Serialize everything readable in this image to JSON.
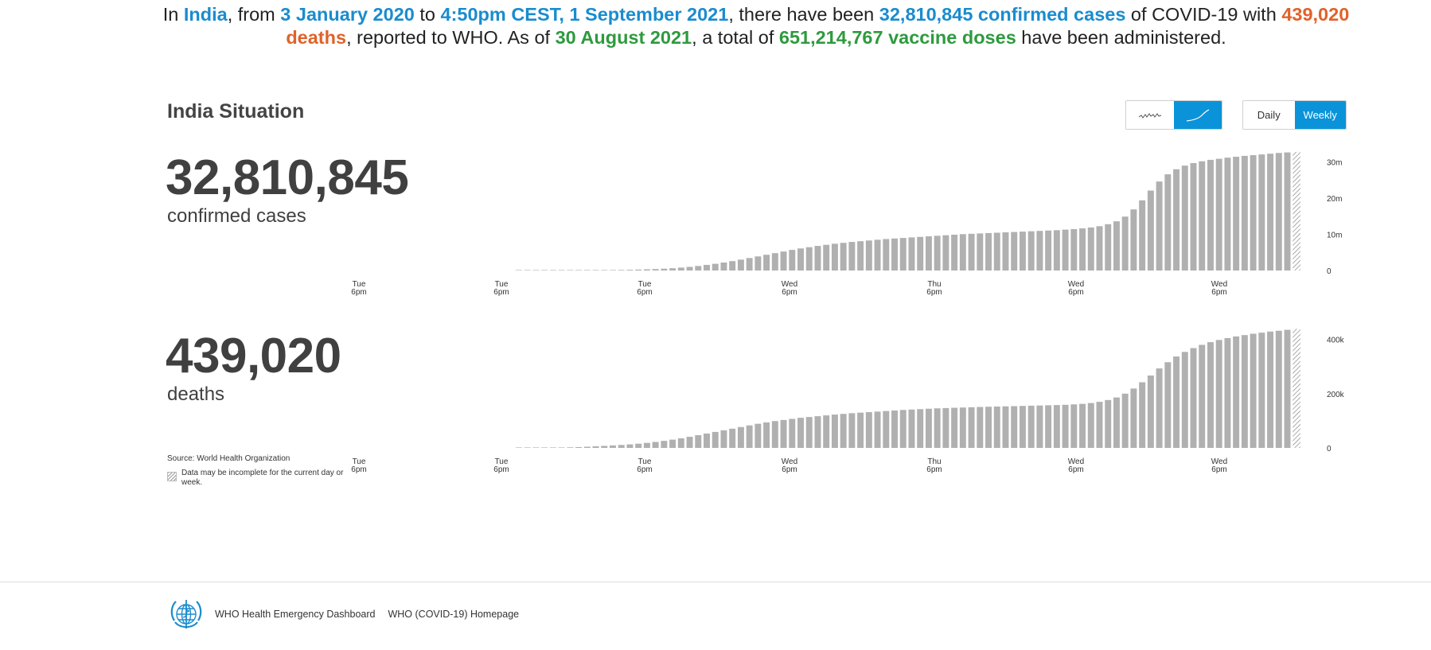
{
  "headline": {
    "p1": "In ",
    "country": "India",
    "p2": ", from ",
    "date_start": "3 January 2020",
    "p3": " to ",
    "date_end": "4:50pm CEST, 1 September 2021",
    "p4": ", there have been ",
    "cases_text": "32,810,845 confirmed cases",
    "p5": " of COVID-19 with ",
    "deaths_text": "439,020 deaths",
    "p6": ", reported to WHO. As of ",
    "vaccine_date": "30 August 2021",
    "p7": ", a total of ",
    "vaccine_text": "651,214,767 vaccine doses",
    "p8": " have been administered."
  },
  "section_title": "India Situation",
  "controls": {
    "mode_icons": [
      "daily-trend-icon",
      "cumulative-trend-icon"
    ],
    "mode_active": "cumulative",
    "period_daily_label": "Daily",
    "period_weekly_label": "Weekly",
    "period_active": "Weekly"
  },
  "cases": {
    "number": "32,810,845",
    "label": "confirmed cases"
  },
  "deaths": {
    "number": "439,020",
    "label": "deaths"
  },
  "source": "Source:  World Health Organization",
  "note": "Data may be incomplete for the current day or week.",
  "footer": {
    "logo": "who-emblem-icon",
    "link1": "WHO Health Emergency Dashboard",
    "link2": "WHO (COVID-19) Homepage"
  },
  "colors": {
    "bar": "#b0b0b0",
    "accent_blue": "#1a8cce",
    "deaths_orange": "#e0622a",
    "vaccine_green": "#2e9a3e",
    "toggle_active": "#0a93d9"
  },
  "chart_data": [
    {
      "type": "bar",
      "name": "confirmed-cases-cumulative-weekly",
      "x_tick_labels": [
        {
          "day": "Tue",
          "time": "6pm"
        },
        {
          "day": "Tue",
          "time": "6pm"
        },
        {
          "day": "Tue",
          "time": "6pm"
        },
        {
          "day": "Wed",
          "time": "6pm"
        },
        {
          "day": "Thu",
          "time": "6pm"
        },
        {
          "day": "Wed",
          "time": "6pm"
        },
        {
          "day": "Wed",
          "time": "6pm"
        }
      ],
      "y_ticks": [
        {
          "value": 0,
          "label": "0"
        },
        {
          "value": 10000000,
          "label": "10m"
        },
        {
          "value": 20000000,
          "label": "20m"
        },
        {
          "value": 30000000,
          "label": "30m"
        }
      ],
      "ylim": [
        0,
        33000000
      ],
      "last_period_incomplete": true,
      "values": [
        3,
        3,
        5,
        7,
        10,
        13,
        17,
        25,
        38,
        58,
        85,
        120,
        160,
        200,
        260,
        330,
        400,
        500,
        630,
        800,
        1000,
        1250,
        1550,
        1850,
        2200,
        2600,
        3000,
        3450,
        3900,
        4350,
        4800,
        5250,
        5700,
        6100,
        6450,
        6800,
        7100,
        7400,
        7650,
        7900,
        8100,
        8300,
        8500,
        8700,
        8850,
        9000,
        9150,
        9300,
        9450,
        9600,
        9750,
        9900,
        10050,
        10150,
        10250,
        10350,
        10450,
        10550,
        10650,
        10750,
        10850,
        10950,
        11050,
        11150,
        11300,
        11450,
        11650,
        11900,
        12250,
        12800,
        13600,
        14900,
        16900,
        19400,
        22100,
        24600,
        26600,
        28000,
        29000,
        29700,
        30200,
        30600,
        30900,
        31200,
        31450,
        31700,
        31900,
        32100,
        32300,
        32500,
        32650,
        32810
      ]
    },
    {
      "type": "bar",
      "name": "deaths-cumulative-weekly",
      "x_tick_labels": [
        {
          "day": "Tue",
          "time": "6pm"
        },
        {
          "day": "Tue",
          "time": "6pm"
        },
        {
          "day": "Tue",
          "time": "6pm"
        },
        {
          "day": "Wed",
          "time": "6pm"
        },
        {
          "day": "Thu",
          "time": "6pm"
        },
        {
          "day": "Wed",
          "time": "6pm"
        },
        {
          "day": "Wed",
          "time": "6pm"
        }
      ],
      "y_ticks": [
        {
          "value": 0,
          "label": "0"
        },
        {
          "value": 200000,
          "label": "200k"
        },
        {
          "value": 400000,
          "label": "400k"
        }
      ],
      "ylim": [
        0,
        440000
      ],
      "last_period_incomplete": true,
      "values": [
        0.2,
        0.3,
        0.5,
        0.8,
        1.2,
        1.7,
        2.3,
        3.2,
        4.5,
        6,
        7.5,
        9.2,
        11,
        13,
        15.5,
        18.5,
        22,
        26,
        30.5,
        35.5,
        41,
        47,
        53,
        59,
        65,
        71,
        77,
        83,
        89,
        94,
        99,
        103,
        107,
        111,
        114,
        117,
        120,
        123,
        125.5,
        128,
        130,
        132,
        134,
        136,
        138,
        140,
        141.5,
        143,
        144.5,
        146,
        147,
        148,
        149,
        150,
        151,
        151.8,
        152.5,
        153.2,
        154,
        154.8,
        155.6,
        156.4,
        157.2,
        158,
        159,
        160.5,
        162.5,
        165.5,
        170,
        176.5,
        186,
        200,
        219,
        242,
        267,
        293,
        316,
        337,
        354,
        368,
        380,
        390,
        398,
        405,
        411,
        416,
        421,
        425,
        429,
        432,
        435.5,
        439
      ]
    }
  ]
}
